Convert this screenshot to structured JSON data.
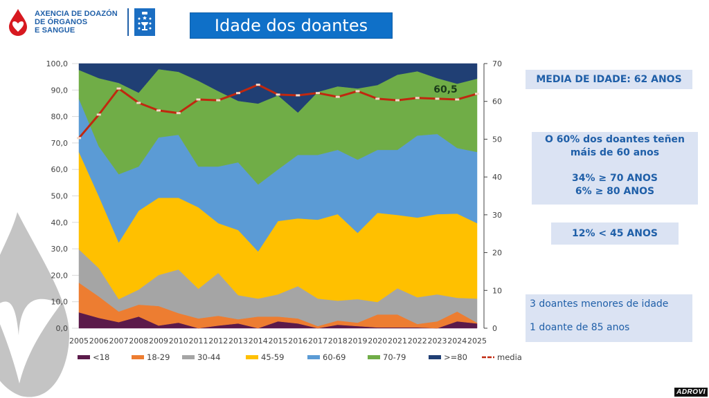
{
  "header": {
    "org_line1": "AXENCIA DE DOAZÓN",
    "org_line2": "DE ÓRGANOS",
    "org_line3": "E SANGUE",
    "title": "Idade dos doantes"
  },
  "colors": {
    "title_bg": "#0f70c8",
    "brand_blue": "#1f5fa8",
    "brand_red": "#d71920",
    "stat_bg": "#dbe3f3"
  },
  "stats": {
    "media": "MEDIA DE IDADE: 62 ANOS",
    "over60_line1": "O 60% dos doantes teñen",
    "over60_line2": "máis de 60 anos",
    "over70": "34% ≥ 70 ANOS",
    "over80": "6% ≥ 80 ANOS",
    "under45": "12% < 45 ANOS",
    "minors": "3 doantes menores de idade",
    "oldest": "1 doante de 85 anos"
  },
  "footer": {
    "brand": "ADROVI"
  },
  "chart_data": {
    "type": "area",
    "stacked": true,
    "title": "",
    "xlabel": "",
    "ylabel": "",
    "x": [
      "2005",
      "2006",
      "2007",
      "2008",
      "2009",
      "2010",
      "2011",
      "2012",
      "2013",
      "2014",
      "2015",
      "2016",
      "2017",
      "2018",
      "2019",
      "2020",
      "2021",
      "2022",
      "2023",
      "2024",
      "2025"
    ],
    "ylim": [
      0,
      100
    ],
    "yticks": [
      "0,0",
      "10,0",
      "20,0",
      "30,0",
      "40,0",
      "50,0",
      "60,0",
      "70,0",
      "80,0",
      "90,0",
      "100,0"
    ],
    "y2lim": [
      0,
      70
    ],
    "y2ticks": [
      "0",
      "10",
      "20",
      "30",
      "40",
      "50",
      "60",
      "70"
    ],
    "grid": true,
    "legend_position": "bottom",
    "series": [
      {
        "name": "<18",
        "color": "#5b1a4a",
        "values": [
          6.0,
          3.9,
          2.3,
          4.4,
          1.0,
          2.1,
          0.0,
          1.0,
          1.8,
          0.0,
          2.6,
          1.8,
          0.0,
          1.3,
          0.8,
          0.3,
          0.3,
          0.3,
          0.0,
          2.6,
          1.8
        ]
      },
      {
        "name": "18-29",
        "color": "#ed7d31",
        "values": [
          11.2,
          8.1,
          4.0,
          4.5,
          7.4,
          3.6,
          3.7,
          3.7,
          1.6,
          4.4,
          1.8,
          1.9,
          0.8,
          1.6,
          1.3,
          4.9,
          4.9,
          1.3,
          2.6,
          3.7,
          0.3
        ]
      },
      {
        "name": "30-44",
        "color": "#a5a5a5",
        "values": [
          12.6,
          10.7,
          4.7,
          5.7,
          11.7,
          16.5,
          11.2,
          16.2,
          9.1,
          6.8,
          8.4,
          12.2,
          10.4,
          7.5,
          8.9,
          4.7,
          9.9,
          10.1,
          10.2,
          5.2,
          9.1
        ]
      },
      {
        "name": "45-59",
        "color": "#ffc000",
        "values": [
          36.8,
          27.2,
          21.4,
          29.8,
          29.2,
          27.1,
          30.8,
          18.8,
          24.6,
          17.8,
          27.7,
          25.6,
          29.8,
          32.7,
          25.0,
          33.7,
          27.7,
          30.1,
          30.3,
          31.8,
          28.5
        ]
      },
      {
        "name": "60-69",
        "color": "#5b9bd5",
        "values": [
          20.1,
          18.8,
          25.8,
          16.7,
          22.8,
          23.8,
          15.4,
          21.4,
          25.6,
          25.3,
          19.5,
          24.0,
          24.5,
          24.3,
          27.7,
          23.8,
          24.6,
          31.0,
          30.3,
          24.8,
          26.9
        ]
      },
      {
        "name": "70-79",
        "color": "#70ad47",
        "values": [
          10.9,
          25.8,
          34.5,
          27.9,
          25.8,
          23.8,
          32.4,
          28.5,
          23.2,
          30.6,
          28.0,
          16.0,
          23.8,
          24.0,
          26.9,
          24.5,
          28.4,
          24.3,
          21.1,
          24.3,
          27.7
        ]
      },
      {
        "name": ">=80",
        "color": "#203f74",
        "values": [
          2.4,
          5.5,
          7.3,
          11.0,
          2.1,
          3.1,
          6.5,
          10.4,
          14.1,
          15.1,
          12.0,
          18.5,
          10.7,
          8.6,
          9.4,
          8.1,
          4.2,
          2.9,
          5.5,
          7.6,
          5.7
        ]
      }
    ],
    "line_series": {
      "name": "media",
      "axis": "right",
      "color": "#c0280f",
      "values": [
        50.3,
        56.5,
        63.4,
        59.6,
        57.6,
        56.9,
        60.5,
        60.3,
        62.2,
        64.4,
        61.8,
        61.6,
        62.2,
        61.2,
        62.7,
        60.7,
        60.3,
        60.9,
        60.7,
        60.5,
        62.0
      ]
    },
    "annotations": [
      {
        "x": "2024",
        "text": "60,5"
      }
    ]
  }
}
